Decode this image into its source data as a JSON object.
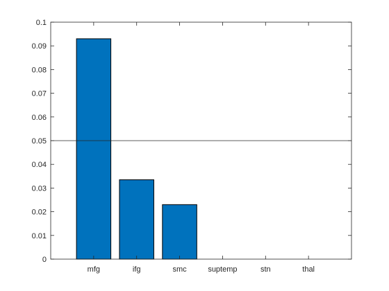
{
  "chart_data": {
    "type": "bar",
    "categories": [
      "mfg",
      "ifg",
      "smc",
      "suptemp",
      "stn",
      "thal"
    ],
    "values": [
      0.093,
      0.0335,
      0.023,
      0,
      0,
      0
    ],
    "ylim": [
      0,
      0.1
    ],
    "yticks": [
      "0",
      "0.01",
      "0.02",
      "0.03",
      "0.04",
      "0.05",
      "0.06",
      "0.07",
      "0.08",
      "0.09",
      "0.1"
    ],
    "reference_line": {
      "y": 0.05
    },
    "bar_color": "#0072BD",
    "bar_edge_color": "#000000",
    "xlim": [
      0,
      7
    ],
    "grid": false,
    "legend": false,
    "title": "",
    "xlabel": "",
    "ylabel": ""
  }
}
